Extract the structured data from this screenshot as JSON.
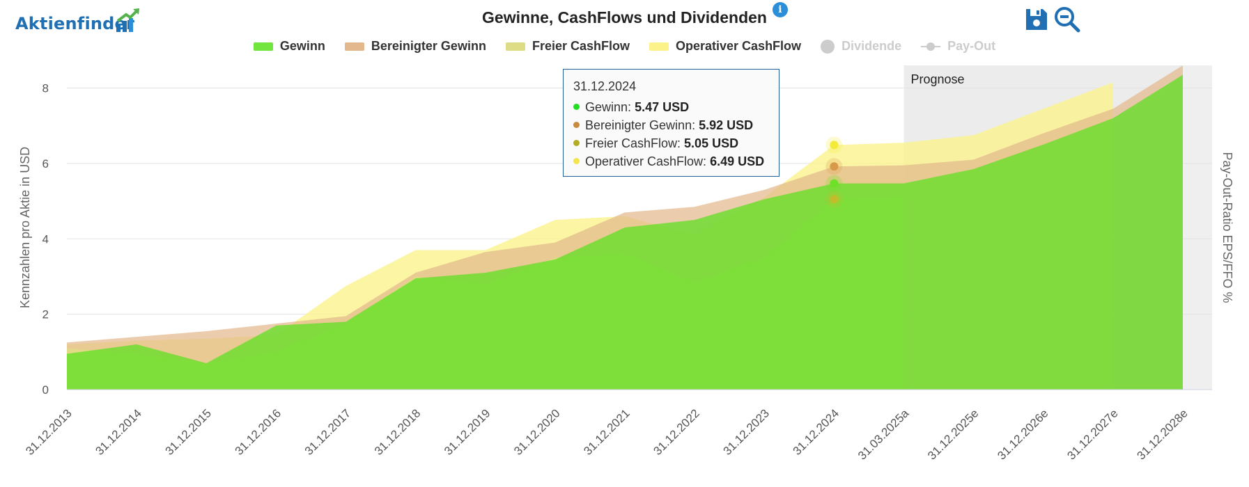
{
  "brand": {
    "name": "Aktienfinder"
  },
  "title": "Gewinne, CashFlows und Dividenden",
  "icons": {
    "info": "info-icon",
    "save": "floppy-disk-icon",
    "zoom": "zoom-out-icon"
  },
  "colors": {
    "gewinn": "#59e11d",
    "bereinigt": "#e3b88c",
    "freier": "#dedc85",
    "operativ": "#fbf38a",
    "brand": "#1f6fb2",
    "accent": "#2a8fd8"
  },
  "legend": [
    {
      "label": "Gewinn",
      "active": true
    },
    {
      "label": "Bereinigter Gewinn",
      "active": true
    },
    {
      "label": "Freier CashFlow",
      "active": true
    },
    {
      "label": "Operativer CashFlow",
      "active": true
    },
    {
      "label": "Dividende",
      "active": false
    },
    {
      "label": "Pay-Out",
      "active": false
    }
  ],
  "tooltip": {
    "date": "31.12.2024",
    "rows": [
      {
        "label": "Gewinn:",
        "value": "5.47 USD",
        "color": "#22dd22"
      },
      {
        "label": "Bereinigter Gewinn:",
        "value": "5.92 USD",
        "color": "#c88a3c"
      },
      {
        "label": "Freier CashFlow:",
        "value": "5.05 USD",
        "color": "#b4ad22"
      },
      {
        "label": "Operativer CashFlow:",
        "value": "6.49 USD",
        "color": "#f2e64a"
      }
    ]
  },
  "chart_data": {
    "type": "area",
    "x": [
      "31.12.2013",
      "31.12.2014",
      "31.12.2015",
      "31.12.2016",
      "31.12.2017",
      "31.12.2018",
      "31.12.2019",
      "31.12.2020",
      "31.12.2021",
      "31.12.2022",
      "31.12.2023",
      "31.12.2024",
      "31.03.2025a",
      "31.12.2025e",
      "31.12.2026e",
      "31.12.2027e",
      "31.12.2028e"
    ],
    "series": [
      {
        "name": "Operativer CashFlow",
        "values": [
          1.2,
          1.3,
          1.35,
          1.45,
          2.75,
          3.7,
          3.7,
          4.5,
          4.6,
          4.1,
          5.1,
          6.49,
          6.55,
          6.75,
          7.45,
          8.15,
          null
        ]
      },
      {
        "name": "Bereinigter Gewinn",
        "values": [
          1.25,
          1.4,
          1.55,
          1.75,
          1.95,
          3.1,
          3.65,
          3.9,
          4.7,
          4.85,
          5.3,
          5.92,
          5.95,
          6.1,
          6.8,
          7.45,
          8.6
        ]
      },
      {
        "name": "Freier CashFlow",
        "values": [
          1.1,
          0.95,
          0.7,
          1.0,
          1.75,
          3.0,
          2.8,
          3.5,
          3.6,
          2.85,
          3.5,
          5.05,
          5.1,
          null,
          null,
          null,
          null
        ]
      },
      {
        "name": "Gewinn",
        "values": [
          0.95,
          1.2,
          0.7,
          1.7,
          1.8,
          2.95,
          3.1,
          3.45,
          4.3,
          4.5,
          5.05,
          5.47,
          5.47,
          5.85,
          6.5,
          7.2,
          8.35
        ]
      }
    ],
    "ylabel": "Kennzahlen pro Aktie in USD",
    "ylabel_right": "Pay-Out-Ratio EPS/FFO %",
    "ylim": [
      0,
      8.6
    ],
    "yticks": [
      0,
      2,
      4,
      6,
      8
    ],
    "grid": true,
    "legend_position": "top",
    "forecast_label": "Prognose",
    "forecast_start_index": 12,
    "highlight_index": 11
  }
}
